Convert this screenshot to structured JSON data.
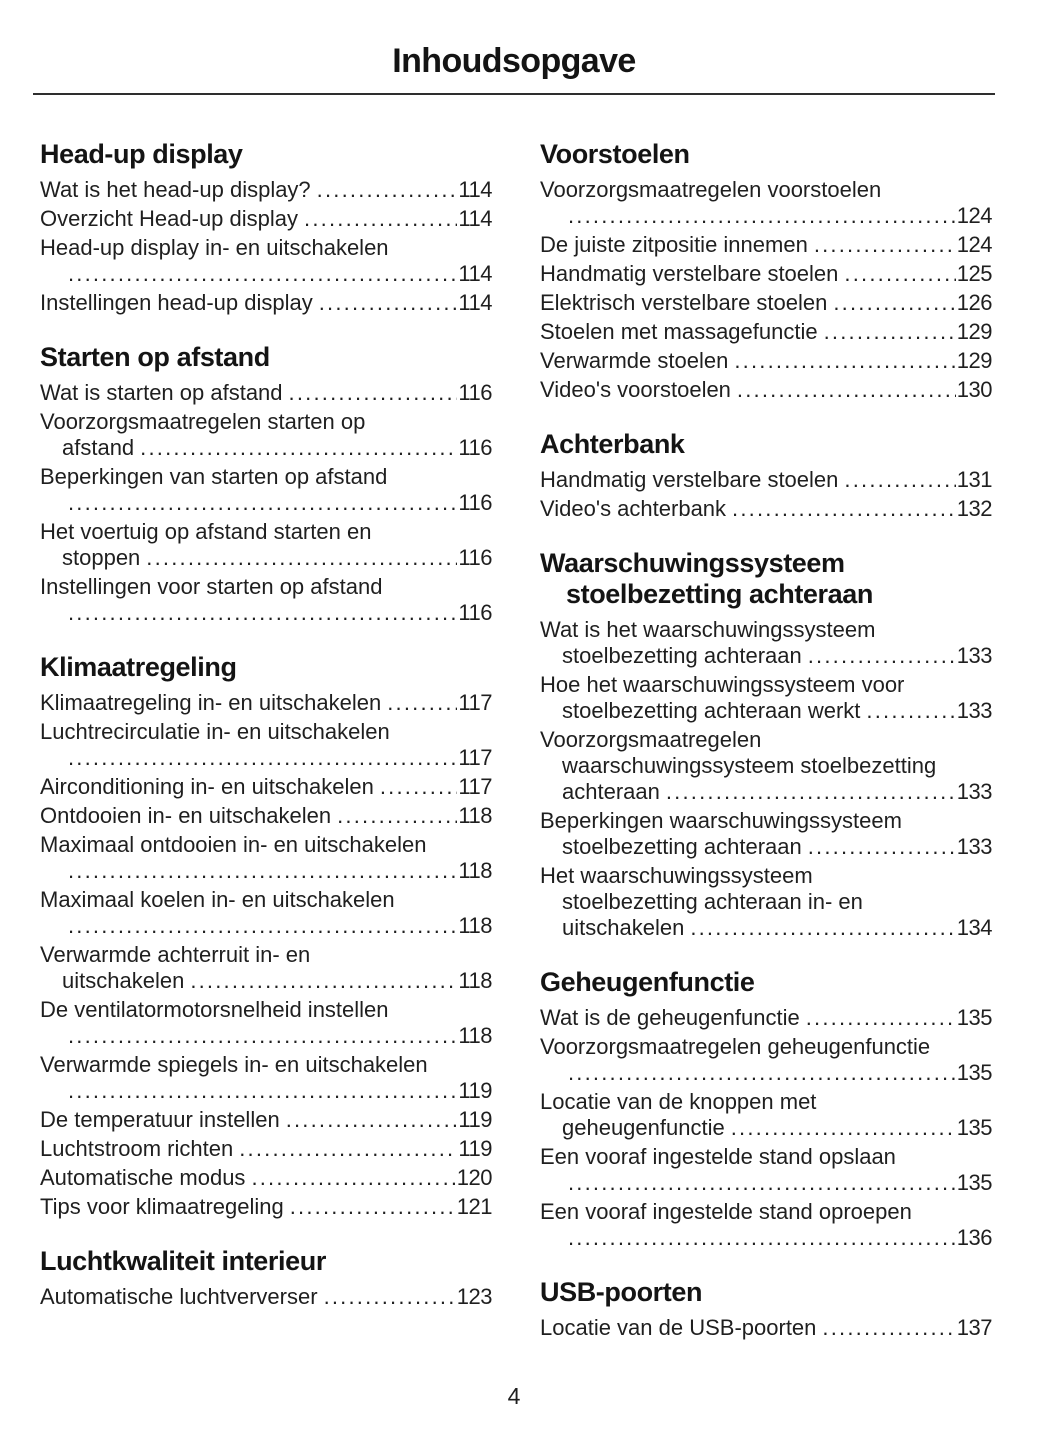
{
  "page": {
    "title": "Inhoudsopgave",
    "page_number": "4"
  },
  "toc": {
    "columns": [
      {
        "sections": [
          {
            "title": "Head-up display",
            "entries": [
              {
                "label": "Wat is het head-up display?",
                "page": "114"
              },
              {
                "label": "Overzicht Head-up display",
                "page": "114"
              },
              {
                "label": "Head-up display in- en uitschakelen",
                "page": "114",
                "wrap": [
                  "Head-up display in- en uitschakelen",
                  ""
                ]
              },
              {
                "label": "Instellingen head-up display",
                "page": "114"
              }
            ]
          },
          {
            "title": "Starten op afstand",
            "entries": [
              {
                "label": "Wat is starten op afstand",
                "page": "116"
              },
              {
                "label": "Voorzorgsmaatregelen starten op afstand",
                "page": "116",
                "wrap": [
                  "Voorzorgsmaatregelen starten op",
                  "afstand"
                ]
              },
              {
                "label": "Beperkingen van starten op afstand",
                "page": "116",
                "wrap": [
                  "Beperkingen van starten op afstand",
                  ""
                ]
              },
              {
                "label": "Het voertuig op afstand starten en stoppen",
                "page": "116",
                "wrap": [
                  "Het voertuig op afstand starten en",
                  "stoppen"
                ]
              },
              {
                "label": "Instellingen voor starten op afstand",
                "page": "116",
                "wrap": [
                  "Instellingen voor starten op afstand",
                  ""
                ]
              }
            ]
          },
          {
            "title": "Klimaatregeling",
            "entries": [
              {
                "label": "Klimaatregeling in- en uitschakelen",
                "page": "117"
              },
              {
                "label": "Luchtrecirculatie in- en uitschakelen",
                "page": "117",
                "wrap": [
                  "Luchtrecirculatie in- en uitschakelen",
                  ""
                ]
              },
              {
                "label": "Airconditioning in- en uitschakelen",
                "page": "117"
              },
              {
                "label": "Ontdooien in- en uitschakelen",
                "page": "118"
              },
              {
                "label": "Maximaal ontdooien in- en uitschakelen",
                "page": "118",
                "wrap": [
                  "Maximaal ontdooien in- en uitschakelen",
                  ""
                ]
              },
              {
                "label": "Maximaal koelen in- en uitschakelen",
                "page": "118",
                "wrap": [
                  "Maximaal koelen in- en uitschakelen",
                  ""
                ]
              },
              {
                "label": "Verwarmde achterruit in- en uitschakelen",
                "page": "118",
                "wrap": [
                  "Verwarmde achterruit in- en",
                  "uitschakelen"
                ]
              },
              {
                "label": "De ventilatormotorsnelheid instellen",
                "page": "118",
                "wrap": [
                  "De ventilatormotorsnelheid instellen",
                  ""
                ]
              },
              {
                "label": "Verwarmde spiegels in- en uitschakelen",
                "page": "119",
                "wrap": [
                  "Verwarmde spiegels in- en uitschakelen",
                  ""
                ]
              },
              {
                "label": "De temperatuur instellen",
                "page": "119"
              },
              {
                "label": "Luchtstroom richten",
                "page": "119"
              },
              {
                "label": "Automatische modus",
                "page": "120"
              },
              {
                "label": "Tips voor klimaatregeling",
                "page": "121"
              }
            ]
          },
          {
            "title": "Luchtkwaliteit interieur",
            "entries": [
              {
                "label": "Automatische luchtververser",
                "page": "123"
              }
            ]
          }
        ]
      },
      {
        "sections": [
          {
            "title": "Voorstoelen",
            "entries": [
              {
                "label": "Voorzorgsmaatregelen voorstoelen",
                "page": "124",
                "wrap": [
                  "Voorzorgsmaatregelen voorstoelen",
                  ""
                ]
              },
              {
                "label": "De juiste zitpositie innemen",
                "page": "124"
              },
              {
                "label": "Handmatig verstelbare stoelen",
                "page": "125"
              },
              {
                "label": "Elektrisch verstelbare stoelen",
                "page": "126"
              },
              {
                "label": "Stoelen met massagefunctie",
                "page": "129"
              },
              {
                "label": "Verwarmde stoelen",
                "page": "129"
              },
              {
                "label": "Video's voorstoelen",
                "page": "130"
              }
            ]
          },
          {
            "title": "Achterbank",
            "entries": [
              {
                "label": "Handmatig verstelbare stoelen",
                "page": "131"
              },
              {
                "label": "Video's achterbank",
                "page": "132"
              }
            ]
          },
          {
            "title": "Waarschuwingssysteem stoelbezetting achteraan",
            "title_wrap": [
              "Waarschuwingssysteem",
              "stoelbezetting achteraan"
            ],
            "entries": [
              {
                "label": "Wat is het waarschuwingssysteem stoelbezetting achteraan",
                "page": "133",
                "wrap": [
                  "Wat is het waarschuwingssysteem",
                  "stoelbezetting achteraan"
                ]
              },
              {
                "label": "Hoe het waarschuwingssysteem voor stoelbezetting achteraan werkt",
                "page": "133",
                "wrap": [
                  "Hoe het waarschuwingssysteem voor",
                  "stoelbezetting achteraan werkt"
                ]
              },
              {
                "label": "Voorzorgsmaatregelen waarschuwingssysteem stoelbezetting achteraan",
                "page": "133",
                "wrap": [
                  "Voorzorgsmaatregelen",
                  "waarschuwingssysteem stoelbezetting",
                  "achteraan"
                ]
              },
              {
                "label": "Beperkingen waarschuwingssysteem stoelbezetting achteraan",
                "page": "133",
                "wrap": [
                  "Beperkingen waarschuwingssysteem",
                  "stoelbezetting achteraan"
                ]
              },
              {
                "label": "Het waarschuwingssysteem stoelbezetting achteraan in- en uitschakelen",
                "page": "134",
                "wrap": [
                  "Het waarschuwingssysteem",
                  "stoelbezetting achteraan in- en",
                  "uitschakelen"
                ]
              }
            ]
          },
          {
            "title": "Geheugenfunctie",
            "entries": [
              {
                "label": "Wat is de geheugenfunctie",
                "page": "135"
              },
              {
                "label": "Voorzorgsmaatregelen geheugenfunctie",
                "page": "135",
                "wrap": [
                  "Voorzorgsmaatregelen geheugenfunctie",
                  ""
                ]
              },
              {
                "label": "Locatie van de knoppen met geheugenfunctie",
                "page": "135",
                "wrap": [
                  "Locatie van de knoppen met",
                  "geheugenfunctie"
                ]
              },
              {
                "label": "Een vooraf ingestelde stand opslaan",
                "page": "135",
                "wrap": [
                  "Een vooraf ingestelde stand opslaan",
                  ""
                ]
              },
              {
                "label": "Een vooraf ingestelde stand oproepen",
                "page": "136",
                "wrap": [
                  "Een vooraf ingestelde stand oproepen",
                  ""
                ]
              }
            ]
          },
          {
            "title": "USB-poorten",
            "entries": [
              {
                "label": "Locatie van de USB-poorten",
                "page": "137"
              }
            ]
          }
        ]
      }
    ]
  }
}
